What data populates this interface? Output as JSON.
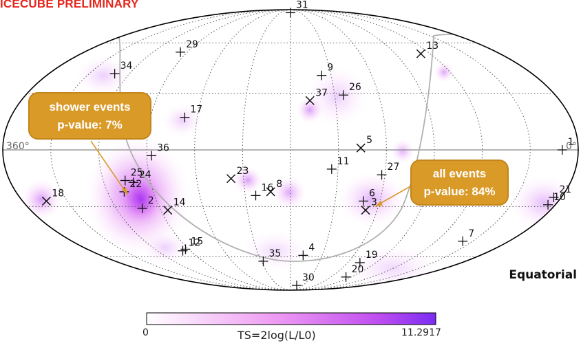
{
  "banner": "ICECUBE PRELIMINARY",
  "coordinate_system": "Equatorial",
  "callouts": {
    "shower": {
      "line1": "shower events",
      "line2": "p-value: 7%"
    },
    "all": {
      "line1": "all events",
      "line2": "p-value: 84%"
    }
  },
  "colors": {
    "banner": "#e5241b",
    "callout_fill": "#d99a28",
    "colormap_low": "#ffffff",
    "colormap_high": "#7a2cf2",
    "galactic_plane": "#b0b0b0"
  },
  "chart_data": {
    "type": "heatmap",
    "projection": "Mollweide",
    "grid": true,
    "ra_axis_labels": {
      "left": "360°",
      "right": "0°"
    },
    "colorbar": {
      "label": "TS=2log(L/L0)",
      "min": 0,
      "max": 11.2917
    },
    "events": [
      {
        "id": "1",
        "ra": 10,
        "dec": 0,
        "marker": "+"
      },
      {
        "id": "2",
        "ra": 282,
        "dec": -31,
        "marker": "+"
      },
      {
        "id": "3",
        "ra": 128,
        "dec": -32,
        "marker": "x"
      },
      {
        "id": "4",
        "ra": 168,
        "dec": -59,
        "marker": "+"
      },
      {
        "id": "5",
        "ra": 136,
        "dec": 1,
        "marker": "x"
      },
      {
        "id": "6",
        "ra": 131,
        "dec": -27,
        "marker": "+"
      },
      {
        "id": "7",
        "ra": 38,
        "dec": -50,
        "marker": "+"
      },
      {
        "id": "8",
        "ra": 193,
        "dec": -22,
        "marker": "x"
      },
      {
        "id": "9",
        "ra": 157,
        "dec": 40,
        "marker": "+"
      },
      {
        "id": "10",
        "ra": 5,
        "dec": -29,
        "marker": "+"
      },
      {
        "id": "11",
        "ra": 154,
        "dec": -10,
        "marker": "+"
      },
      {
        "id": "12",
        "ra": 277,
        "dec": -56,
        "marker": "+"
      },
      {
        "id": "13",
        "ra": 68,
        "dec": 53,
        "marker": "x"
      },
      {
        "id": "14",
        "ra": 265,
        "dec": -32,
        "marker": "x"
      },
      {
        "id": "15",
        "ra": 273,
        "dec": -55,
        "marker": "+"
      },
      {
        "id": "16",
        "ra": 203,
        "dec": -24,
        "marker": "+"
      },
      {
        "id": "17",
        "ra": 248,
        "dec": 17,
        "marker": "+"
      },
      {
        "id": "18",
        "ra": 344,
        "dec": -27,
        "marker": "x"
      },
      {
        "id": "19",
        "ra": 107,
        "dec": -64,
        "marker": "+"
      },
      {
        "id": "20",
        "ra": 98,
        "dec": -75,
        "marker": "+"
      },
      {
        "id": "21",
        "ra": 5,
        "dec": -25,
        "marker": "+"
      },
      {
        "id": "22",
        "ra": 289,
        "dec": -22,
        "marker": "+"
      },
      {
        "id": "23",
        "ra": 218,
        "dec": -15,
        "marker": "x"
      },
      {
        "id": "24",
        "ra": 281,
        "dec": -17,
        "marker": "+"
      },
      {
        "id": "25",
        "ra": 286,
        "dec": -16,
        "marker": "+"
      },
      {
        "id": "26",
        "ra": 144,
        "dec": 29,
        "marker": "+"
      },
      {
        "id": "27",
        "ra": 122,
        "dec": -13,
        "marker": "+"
      },
      {
        "id": "29",
        "ra": 276,
        "dec": 54,
        "marker": "+"
      },
      {
        "id": "30",
        "ra": 165,
        "dec": -83,
        "marker": "+"
      },
      {
        "id": "31",
        "ra": 180,
        "dec": 85,
        "marker": "+"
      },
      {
        "id": "34",
        "ra": 311,
        "dec": 41,
        "marker": "+"
      },
      {
        "id": "35",
        "ra": 208,
        "dec": -63,
        "marker": "+"
      },
      {
        "id": "36",
        "ra": 267,
        "dec": -3,
        "marker": "+"
      },
      {
        "id": "37",
        "ra": 167,
        "dec": 26,
        "marker": "x"
      }
    ]
  }
}
